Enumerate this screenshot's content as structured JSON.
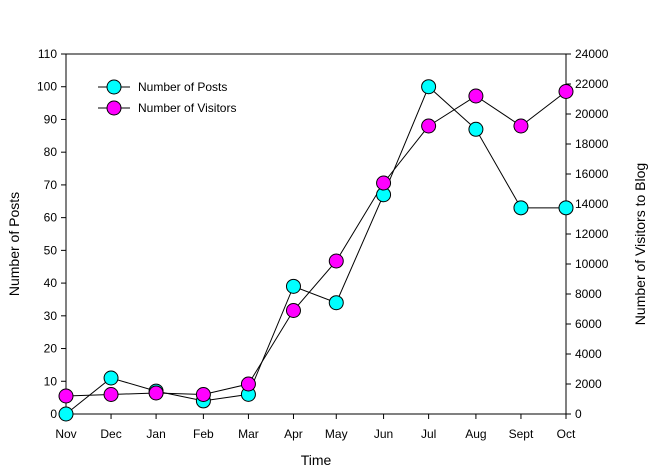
{
  "chart_data": {
    "type": "line",
    "title": "",
    "xlabel": "Time",
    "ylabel": "Number of Posts",
    "y2label": "Number of Visitors to Blog",
    "categories": [
      "Nov",
      "Dec",
      "Jan",
      "Feb",
      "Mar",
      "Apr",
      "May",
      "Jun",
      "Jul",
      "Aug",
      "Sept",
      "Oct"
    ],
    "x": [
      0,
      1.0,
      2.0,
      3.05,
      4.05,
      5.05,
      6.0,
      7.05,
      8.05,
      9.1,
      10.1,
      11.1
    ],
    "ylim": [
      0,
      110
    ],
    "yticks": [
      0,
      10,
      20,
      30,
      40,
      50,
      60,
      70,
      80,
      90,
      100,
      110
    ],
    "y2lim": [
      0,
      24000
    ],
    "y2ticks": [
      0,
      2000,
      4000,
      6000,
      8000,
      10000,
      12000,
      14000,
      16000,
      18000,
      20000,
      22000,
      24000
    ],
    "legend_position": "top-left",
    "grid": false,
    "series": [
      {
        "name": "Number of Posts",
        "axis": "left",
        "color": "#00ffff",
        "values": [
          0,
          11,
          7,
          4,
          6,
          39,
          34,
          67,
          100,
          87,
          63,
          63
        ]
      },
      {
        "name": "Number of Visitors",
        "axis": "right",
        "color": "#ff00ff",
        "values": [
          1200,
          1300,
          1400,
          1300,
          2000,
          6900,
          10200,
          15400,
          19200,
          21200,
          19200,
          21500
        ]
      }
    ]
  }
}
